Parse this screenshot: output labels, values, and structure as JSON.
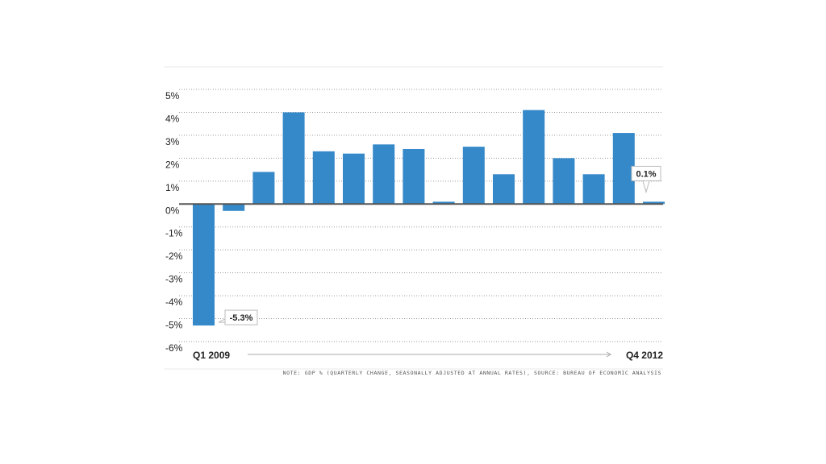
{
  "chart_data": {
    "type": "bar",
    "title": "",
    "xlabel": "",
    "ylabel": "",
    "ylim": [
      -6,
      5
    ],
    "y_ticks": [
      5,
      4,
      3,
      2,
      1,
      0,
      -1,
      -2,
      -3,
      -4,
      -5,
      -6
    ],
    "y_tick_labels": [
      "5%",
      "4%",
      "3%",
      "2%",
      "1%",
      "0%",
      "-1%",
      "-2%",
      "-3%",
      "-4%",
      "-5%",
      "-6%"
    ],
    "grid": true,
    "bar_color": "#3589c9",
    "values": [
      -5.3,
      -0.3,
      1.4,
      4.0,
      2.3,
      2.2,
      2.6,
      2.4,
      0.1,
      2.5,
      1.3,
      4.1,
      2.0,
      1.3,
      3.1,
      0.1
    ],
    "x_start_label": "Q1 2009",
    "x_end_label": "Q4 2012",
    "callouts": [
      {
        "index": 0,
        "label": "-5.3%"
      },
      {
        "index": 15,
        "label": "0.1%"
      }
    ]
  },
  "note": "NOTE: GDP % (QUARTERLY CHANGE, SEASONALLY ADJUSTED AT ANNUAL RATES), SOURCE: BUREAU OF ECONOMIC ANALYSIS"
}
